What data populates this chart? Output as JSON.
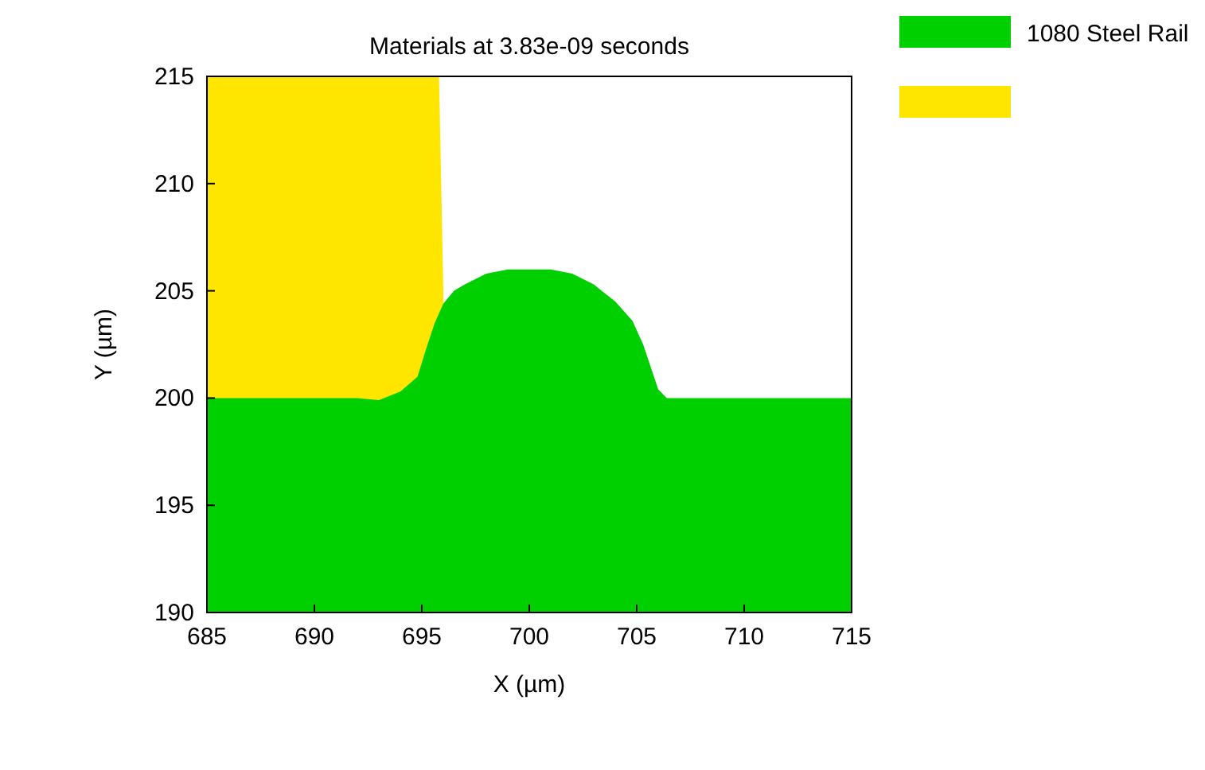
{
  "chart_data": {
    "type": "area",
    "title": "Materials at 3.83e-09 seconds",
    "xlabel": "X (µm)",
    "ylabel": "Y (µm)",
    "xlim": [
      685,
      715
    ],
    "ylim": [
      190,
      215
    ],
    "xticks": [
      685,
      690,
      695,
      700,
      705,
      710,
      715
    ],
    "yticks": [
      190,
      195,
      200,
      205,
      210,
      215
    ],
    "legend": "top right",
    "series": [
      {
        "color": "#ffe600",
        "x": [
          685,
          695.8,
          696.0
        ],
        "values": [
          215,
          215,
          205
        ]
      },
      {
        "name": "1080 Steel Rail",
        "color": "#00d000",
        "x": [
          685,
          692,
          693,
          694,
          694.8,
          695.2,
          695.6,
          696,
          696.5,
          697,
          698,
          699,
          700,
          701,
          702,
          703,
          704,
          704.8,
          705.3,
          705.7,
          706,
          706.4,
          715
        ],
        "values": [
          200,
          200,
          199.9,
          200.3,
          201,
          202.3,
          203.5,
          204.4,
          205,
          205.3,
          205.8,
          206,
          206,
          206,
          205.8,
          205.3,
          204.5,
          203.6,
          202.5,
          201.3,
          200.4,
          200,
          200
        ]
      }
    ]
  }
}
